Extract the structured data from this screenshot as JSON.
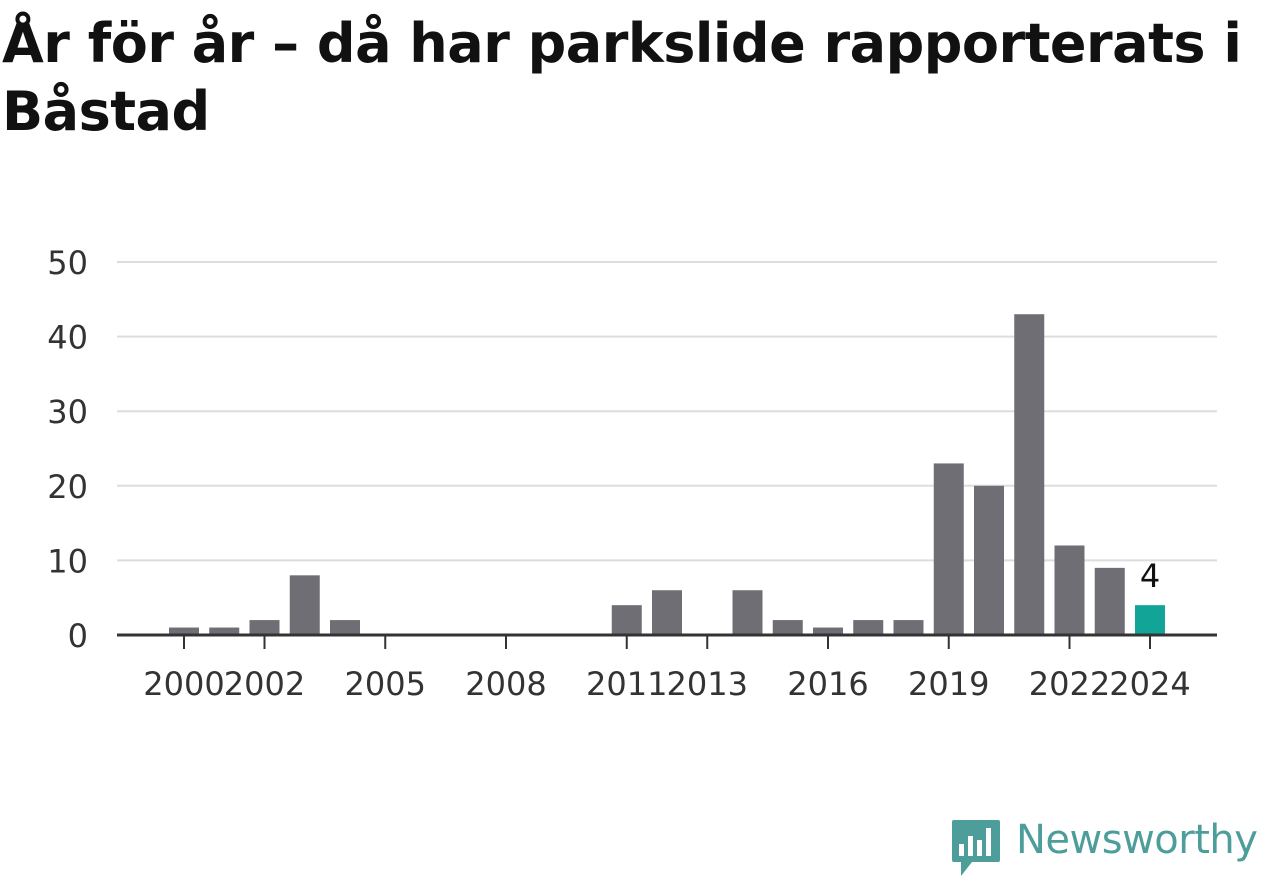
{
  "title": "År för år – då har parkslide rapporterats i Båstad",
  "brand": {
    "name": "Newsworthy",
    "color": "#4d9e9b",
    "icon": "bar-chart-speech-bubble-icon"
  },
  "colors": {
    "bar": "#6f6e74",
    "highlight": "#11a497",
    "grid": "#dddddd",
    "axis": "#333333"
  },
  "chart_data": {
    "type": "bar",
    "categories": [
      "2000",
      "2001",
      "2002",
      "2003",
      "2004",
      "2005",
      "2006",
      "2007",
      "2008",
      "2009",
      "2010",
      "2011",
      "2012",
      "2013",
      "2014",
      "2015",
      "2016",
      "2017",
      "2018",
      "2019",
      "2020",
      "2021",
      "2022",
      "2023",
      "2024"
    ],
    "values": [
      1,
      1,
      2,
      8,
      2,
      0,
      0,
      0,
      0,
      0,
      0,
      4,
      6,
      0,
      6,
      2,
      1,
      2,
      2,
      23,
      20,
      43,
      12,
      9,
      4
    ],
    "highlight_category": "2024",
    "data_labels": [
      {
        "category": "2024",
        "text": "4"
      }
    ],
    "x_tick_labels": [
      "2000",
      "2002",
      "2005",
      "2008",
      "2011",
      "2013",
      "2016",
      "2019",
      "2022",
      "2024"
    ],
    "y_ticks": [
      0,
      10,
      20,
      30,
      40,
      50
    ],
    "ylim": [
      0,
      50
    ],
    "title": "År för år – då har parkslide rapporterats i Båstad",
    "xlabel": "",
    "ylabel": "",
    "grid": true,
    "legend": "none"
  }
}
